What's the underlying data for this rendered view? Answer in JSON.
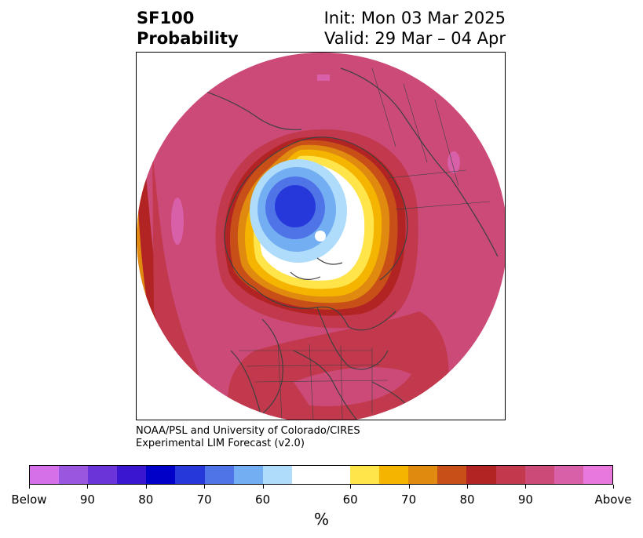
{
  "header": {
    "title_line1": "SF100",
    "title_line2": "Probability",
    "init": "Init: Mon 03 Mar 2025",
    "valid": "Valid: 29 Mar – 04 Apr"
  },
  "credit": {
    "line1": "NOAA/PSL and University of Colorado/CIRES",
    "line2": "Experimental LIM Forecast (v2.0)"
  },
  "colorbar": {
    "unit": "%",
    "colors": [
      "#d670e8",
      "#9b56e0",
      "#6a34d8",
      "#3a16d0",
      "#0000c8",
      "#2638da",
      "#4e74e8",
      "#74aef2",
      "#aedcfa",
      "#ffffff",
      "#ffe44a",
      "#f4b400",
      "#e08a10",
      "#c85018",
      "#b22424",
      "#c2384c",
      "#cc4a78",
      "#d860a8",
      "#e878dc"
    ],
    "tick_labels": [
      "Below",
      "90",
      "80",
      "70",
      "60",
      "60",
      "70",
      "80",
      "90",
      "Above"
    ]
  },
  "map": {
    "colors": {
      "above_outer": "#cc4a78",
      "above_90": "#d860a8",
      "above_80": "#c2384c",
      "above_75": "#b22424",
      "above_70": "#c85018",
      "above_65": "#e08a10",
      "above_60": "#f4b400",
      "above_55": "#ffe44a",
      "neutral": "#ffffff",
      "below_55": "#aedcfa",
      "below_60": "#74aef2",
      "below_65": "#4e74e8",
      "below_70": "#2638da",
      "coast": "#404040"
    }
  }
}
